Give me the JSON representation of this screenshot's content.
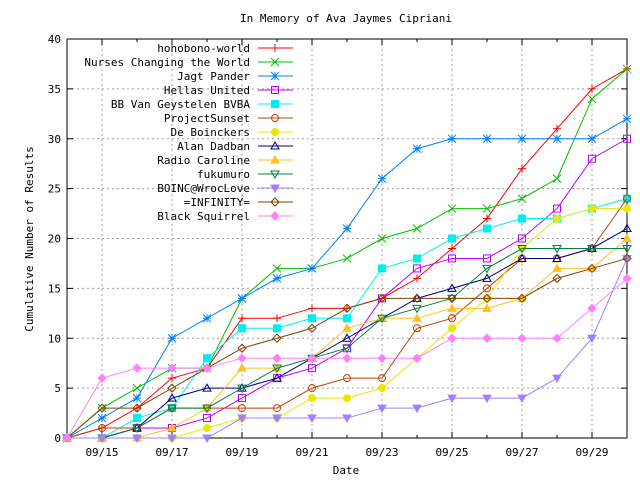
{
  "chart_data": {
    "type": "line",
    "title": "In Memory of Ava Jaymes Cipriani",
    "xlabel": "Date",
    "ylabel": "Cumulative Number of Results",
    "x": [
      "09/14",
      "09/15",
      "09/16",
      "09/17",
      "09/18",
      "09/19",
      "09/20",
      "09/21",
      "09/22",
      "09/23",
      "09/24",
      "09/25",
      "09/26",
      "09/27",
      "09/28",
      "09/29",
      "09/30"
    ],
    "xticks": [
      "09/15",
      "09/17",
      "09/19",
      "09/21",
      "09/23",
      "09/25",
      "09/27",
      "09/29"
    ],
    "yticks": [
      0,
      5,
      10,
      15,
      20,
      25,
      30,
      35,
      40
    ],
    "ylim": [
      0,
      40
    ],
    "grid": true,
    "legend_position": "top-right",
    "series": [
      {
        "name": "honobono-world",
        "color": "#ff0000",
        "marker": "plus",
        "values": [
          0,
          1,
          3,
          6,
          7,
          12,
          12,
          13,
          13,
          14,
          16,
          19,
          22,
          27,
          31,
          35,
          37
        ]
      },
      {
        "name": "Nurses Changing the World",
        "color": "#00c000",
        "marker": "cross",
        "values": [
          0,
          3,
          5,
          7,
          7,
          14,
          17,
          17,
          18,
          20,
          21,
          23,
          23,
          24,
          26,
          34,
          37
        ]
      },
      {
        "name": "Jagt Pander",
        "color": "#0080ff",
        "marker": "star",
        "values": [
          0,
          2,
          4,
          10,
          12,
          14,
          16,
          17,
          21,
          26,
          29,
          30,
          30,
          30,
          30,
          30,
          32
        ]
      },
      {
        "name": "Hellas United",
        "color": "#c000ff",
        "marker": "square",
        "values": [
          0,
          0,
          1,
          1,
          2,
          4,
          6,
          7,
          9,
          14,
          17,
          18,
          18,
          20,
          23,
          28,
          30
        ]
      },
      {
        "name": "BB Van Geystelen BVBA",
        "color": "#00eeee",
        "marker": "filled-square",
        "values": [
          0,
          0,
          2,
          3,
          8,
          11,
          11,
          12,
          12,
          17,
          18,
          20,
          21,
          22,
          22,
          23,
          24
        ]
      },
      {
        "name": "ProjectSunset",
        "color": "#c04000",
        "marker": "circle",
        "values": [
          0,
          1,
          1,
          3,
          3,
          3,
          3,
          5,
          6,
          6,
          11,
          12,
          15,
          18,
          18,
          19,
          24
        ]
      },
      {
        "name": "De Boinckers",
        "color": "#e8e800",
        "marker": "filled-circle",
        "values": [
          0,
          0,
          0,
          0,
          1,
          2,
          2,
          4,
          4,
          5,
          8,
          11,
          14,
          19,
          22,
          23,
          23
        ]
      },
      {
        "name": "Alan Dadban",
        "color": "#000080",
        "marker": "triangle",
        "values": [
          0,
          0,
          1,
          4,
          5,
          5,
          6,
          8,
          10,
          12,
          14,
          15,
          16,
          18,
          18,
          19,
          21
        ]
      },
      {
        "name": "Radio Caroline",
        "color": "#ffc020",
        "marker": "filled-triangle",
        "values": [
          0,
          0,
          0,
          1,
          3,
          7,
          7,
          8,
          11,
          12,
          12,
          13,
          13,
          14,
          17,
          17,
          20
        ]
      },
      {
        "name": "fukumuro",
        "color": "#008040",
        "marker": "inverted-triangle",
        "values": [
          0,
          0,
          1,
          3,
          3,
          5,
          7,
          8,
          9,
          12,
          13,
          14,
          17,
          19,
          19,
          19,
          19
        ]
      },
      {
        "name": "BOINC@WrocLove",
        "color": "#a080ff",
        "marker": "filled-inverted-triangle",
        "values": [
          0,
          0,
          0,
          0,
          0,
          2,
          2,
          2,
          2,
          3,
          3,
          4,
          4,
          4,
          6,
          10,
          18
        ]
      },
      {
        "name": "=INFINITY=",
        "color": "#804000",
        "marker": "diamond",
        "values": [
          0,
          3,
          3,
          5,
          7,
          9,
          10,
          11,
          13,
          14,
          14,
          14,
          14,
          14,
          16,
          17,
          18
        ]
      },
      {
        "name": "Black Squirrel",
        "color": "#ff80ff",
        "marker": "filled-diamond",
        "values": [
          0,
          6,
          7,
          7,
          7,
          8,
          8,
          8,
          8,
          8,
          8,
          10,
          10,
          10,
          10,
          13,
          16
        ]
      }
    ]
  }
}
